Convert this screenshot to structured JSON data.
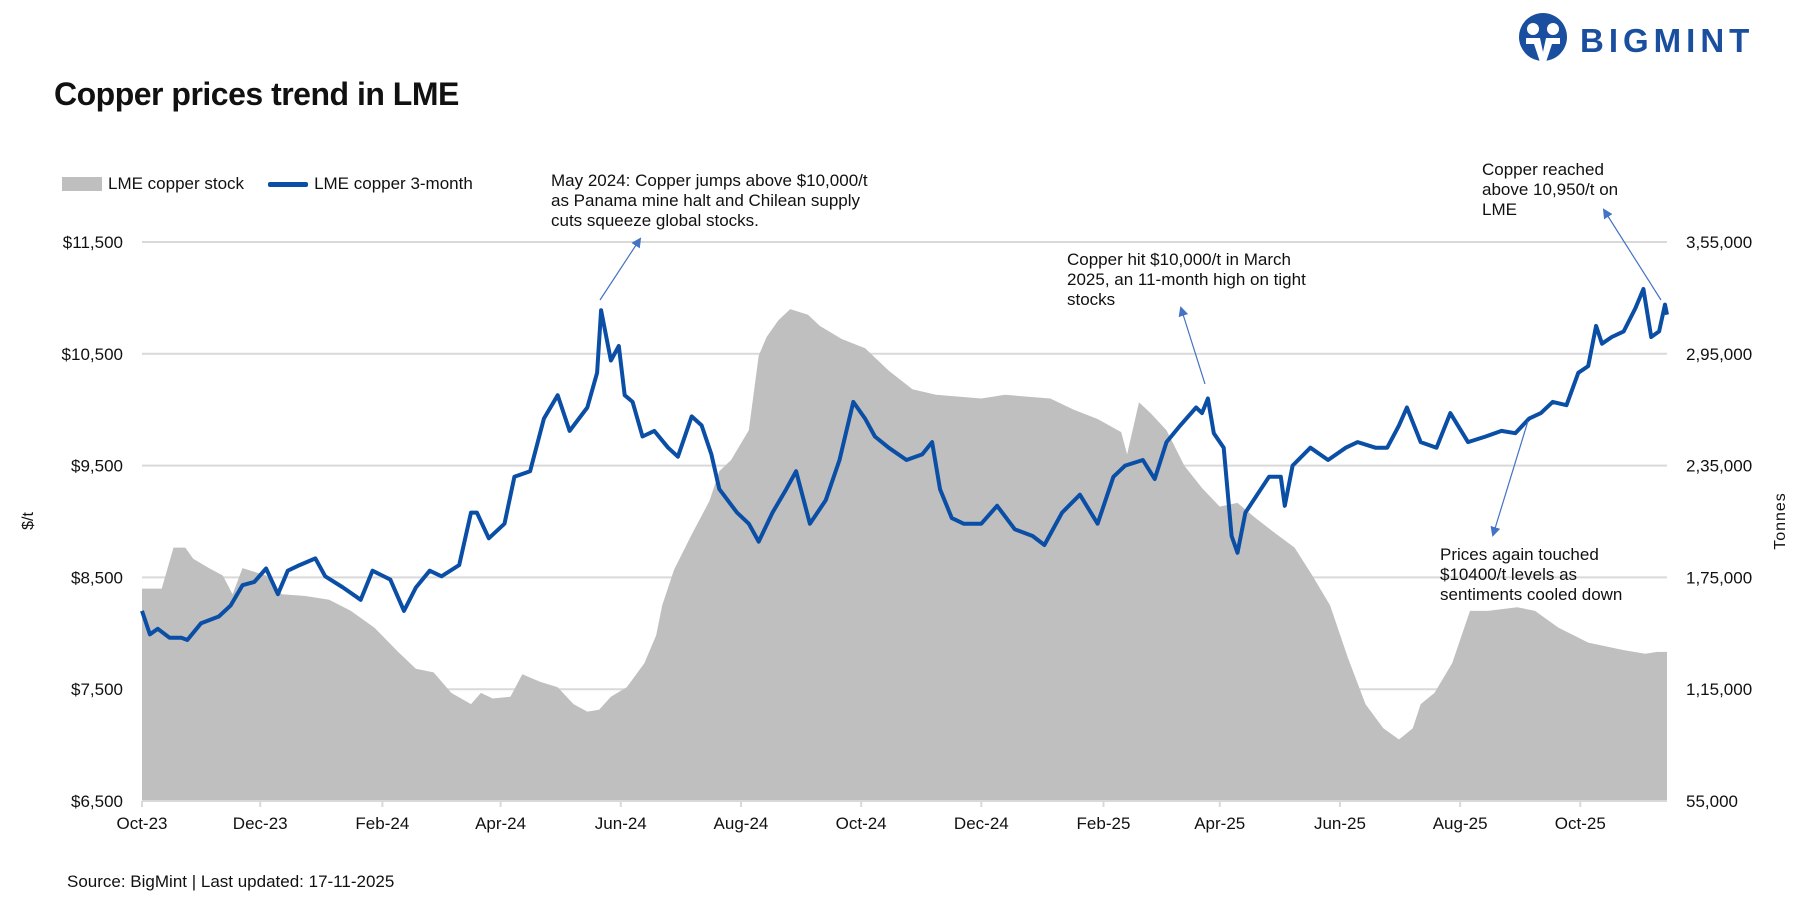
{
  "brand": {
    "logo_text": "BIGMINT",
    "color": "#1a4fa0"
  },
  "source": "Source: BigMint | Last updated: 17-11-2025",
  "chart_data": {
    "type": "line+area",
    "title": "Copper prices trend in LME",
    "legend_position": "top-left",
    "grid": true,
    "x_range": [
      "2023-10-02",
      "2025-11-14"
    ],
    "x_ticks": [
      "Oct-23",
      "Dec-23",
      "Feb-24",
      "Apr-24",
      "Jun-24",
      "Aug-24",
      "Oct-24",
      "Dec-24",
      "Feb-25",
      "Apr-25",
      "Jun-25",
      "Aug-25",
      "Oct-25"
    ],
    "x_tick_dates": [
      "2023-10-02",
      "2023-12-01",
      "2024-02-01",
      "2024-04-01",
      "2024-06-01",
      "2024-08-01",
      "2024-10-01",
      "2024-12-01",
      "2025-02-01",
      "2025-04-01",
      "2025-06-01",
      "2025-08-01",
      "2025-10-01"
    ],
    "y_left": {
      "label": "$/t",
      "range": [
        6500,
        11500
      ],
      "ticks": [
        "$6,500",
        "$7,500",
        "$8,500",
        "$9,500",
        "$10,500",
        "$11,500"
      ],
      "tick_values": [
        6500,
        7500,
        8500,
        9500,
        10500,
        11500
      ]
    },
    "y_right": {
      "label": "Tonnes",
      "range": [
        55000,
        355000
      ],
      "ticks": [
        "55,000",
        "1,15,000",
        "1,75,000",
        "2,35,000",
        "2,95,000",
        "3,55,000"
      ]
    },
    "series": [
      {
        "name": "LME copper stock",
        "type": "area",
        "axis": "right",
        "color": "#bfbfbf",
        "points": [
          [
            "2023-10-02",
            169000
          ],
          [
            "2023-10-12",
            169000
          ],
          [
            "2023-10-18",
            191000
          ],
          [
            "2023-10-24",
            191000
          ],
          [
            "2023-10-28",
            185000
          ],
          [
            "2023-11-05",
            180000
          ],
          [
            "2023-11-12",
            176000
          ],
          [
            "2023-11-17",
            166000
          ],
          [
            "2023-11-22",
            180000
          ],
          [
            "2023-12-04",
            176000
          ],
          [
            "2023-12-12",
            166000
          ],
          [
            "2023-12-24",
            165000
          ],
          [
            "2024-01-05",
            163000
          ],
          [
            "2024-01-16",
            157000
          ],
          [
            "2024-01-28",
            148000
          ],
          [
            "2024-02-09",
            135000
          ],
          [
            "2024-02-18",
            126000
          ],
          [
            "2024-02-27",
            124000
          ],
          [
            "2024-03-07",
            113000
          ],
          [
            "2024-03-17",
            107000
          ],
          [
            "2024-03-22",
            113000
          ],
          [
            "2024-03-28",
            110000
          ],
          [
            "2024-04-06",
            111000
          ],
          [
            "2024-04-12",
            123000
          ],
          [
            "2024-04-21",
            119000
          ],
          [
            "2024-04-30",
            116000
          ],
          [
            "2024-05-08",
            107000
          ],
          [
            "2024-05-15",
            103000
          ],
          [
            "2024-05-21",
            104000
          ],
          [
            "2024-05-27",
            111000
          ],
          [
            "2024-06-04",
            116000
          ],
          [
            "2024-06-13",
            129000
          ],
          [
            "2024-06-19",
            144000
          ],
          [
            "2024-06-22",
            160000
          ],
          [
            "2024-06-28",
            179000
          ],
          [
            "2024-07-07",
            198000
          ],
          [
            "2024-07-16",
            216000
          ],
          [
            "2024-07-21",
            232000
          ],
          [
            "2024-07-27",
            238000
          ],
          [
            "2024-08-05",
            254000
          ],
          [
            "2024-08-10",
            294000
          ],
          [
            "2024-08-14",
            304000
          ],
          [
            "2024-08-20",
            313000
          ],
          [
            "2024-08-26",
            319000
          ],
          [
            "2024-09-04",
            316000
          ],
          [
            "2024-09-10",
            310000
          ],
          [
            "2024-09-21",
            303000
          ],
          [
            "2024-10-03",
            298000
          ],
          [
            "2024-10-15",
            286000
          ],
          [
            "2024-10-27",
            276000
          ],
          [
            "2024-11-08",
            273000
          ],
          [
            "2024-12-01",
            271000
          ],
          [
            "2024-12-13",
            273000
          ],
          [
            "2025-01-05",
            271000
          ],
          [
            "2025-01-17",
            265000
          ],
          [
            "2025-01-29",
            260000
          ],
          [
            "2025-02-10",
            253000
          ],
          [
            "2025-02-13",
            241000
          ],
          [
            "2025-02-19",
            269000
          ],
          [
            "2025-02-25",
            263000
          ],
          [
            "2025-03-05",
            254000
          ],
          [
            "2025-03-14",
            235000
          ],
          [
            "2025-03-23",
            223000
          ],
          [
            "2025-04-01",
            213000
          ],
          [
            "2025-04-10",
            215000
          ],
          [
            "2025-04-19",
            207000
          ],
          [
            "2025-04-30",
            198000
          ],
          [
            "2025-05-09",
            191000
          ],
          [
            "2025-05-18",
            176000
          ],
          [
            "2025-05-27",
            160000
          ],
          [
            "2025-06-05",
            132000
          ],
          [
            "2025-06-14",
            107000
          ],
          [
            "2025-06-23",
            94000
          ],
          [
            "2025-07-01",
            88000
          ],
          [
            "2025-07-08",
            94000
          ],
          [
            "2025-07-12",
            107000
          ],
          [
            "2025-07-19",
            113000
          ],
          [
            "2025-07-28",
            129000
          ],
          [
            "2025-08-06",
            157000
          ],
          [
            "2025-08-15",
            157000
          ],
          [
            "2025-08-30",
            159000
          ],
          [
            "2025-09-08",
            157000
          ],
          [
            "2025-09-20",
            148000
          ],
          [
            "2025-10-05",
            140000
          ],
          [
            "2025-10-23",
            136000
          ],
          [
            "2025-11-03",
            134000
          ],
          [
            "2025-11-09",
            135000
          ],
          [
            "2025-11-14",
            135000
          ]
        ]
      },
      {
        "name": "LME copper 3-month",
        "type": "line",
        "axis": "left",
        "color": "#0a4ea6",
        "points": [
          [
            "2023-10-02",
            8200
          ],
          [
            "2023-10-06",
            7990
          ],
          [
            "2023-10-10",
            8040
          ],
          [
            "2023-10-16",
            7960
          ],
          [
            "2023-10-22",
            7960
          ],
          [
            "2023-10-25",
            7940
          ],
          [
            "2023-11-01",
            8090
          ],
          [
            "2023-11-10",
            8150
          ],
          [
            "2023-11-16",
            8250
          ],
          [
            "2023-11-22",
            8430
          ],
          [
            "2023-11-28",
            8460
          ],
          [
            "2023-12-04",
            8580
          ],
          [
            "2023-12-10",
            8350
          ],
          [
            "2023-12-15",
            8560
          ],
          [
            "2023-12-21",
            8610
          ],
          [
            "2023-12-29",
            8670
          ],
          [
            "2024-01-03",
            8510
          ],
          [
            "2024-01-12",
            8410
          ],
          [
            "2024-01-21",
            8300
          ],
          [
            "2024-01-27",
            8560
          ],
          [
            "2024-02-05",
            8480
          ],
          [
            "2024-02-12",
            8200
          ],
          [
            "2024-02-18",
            8410
          ],
          [
            "2024-02-25",
            8560
          ],
          [
            "2024-03-02",
            8510
          ],
          [
            "2024-03-11",
            8610
          ],
          [
            "2024-03-17",
            9080
          ],
          [
            "2024-03-20",
            9080
          ],
          [
            "2024-03-26",
            8850
          ],
          [
            "2024-04-03",
            8980
          ],
          [
            "2024-04-08",
            9400
          ],
          [
            "2024-04-16",
            9450
          ],
          [
            "2024-04-23",
            9920
          ],
          [
            "2024-04-30",
            10130
          ],
          [
            "2024-05-06",
            9810
          ],
          [
            "2024-05-15",
            10020
          ],
          [
            "2024-05-20",
            10330
          ],
          [
            "2024-05-22",
            10890
          ],
          [
            "2024-05-27",
            10440
          ],
          [
            "2024-05-31",
            10570
          ],
          [
            "2024-06-03",
            10130
          ],
          [
            "2024-06-07",
            10070
          ],
          [
            "2024-06-12",
            9760
          ],
          [
            "2024-06-18",
            9810
          ],
          [
            "2024-06-25",
            9660
          ],
          [
            "2024-06-30",
            9580
          ],
          [
            "2024-07-07",
            9940
          ],
          [
            "2024-07-12",
            9860
          ],
          [
            "2024-07-17",
            9600
          ],
          [
            "2024-07-21",
            9290
          ],
          [
            "2024-07-30",
            9080
          ],
          [
            "2024-08-05",
            8980
          ],
          [
            "2024-08-10",
            8820
          ],
          [
            "2024-08-17",
            9080
          ],
          [
            "2024-08-24",
            9290
          ],
          [
            "2024-08-29",
            9450
          ],
          [
            "2024-09-05",
            8980
          ],
          [
            "2024-09-13",
            9190
          ],
          [
            "2024-09-20",
            9550
          ],
          [
            "2024-09-27",
            10070
          ],
          [
            "2024-10-03",
            9920
          ],
          [
            "2024-10-08",
            9760
          ],
          [
            "2024-10-15",
            9660
          ],
          [
            "2024-10-24",
            9550
          ],
          [
            "2024-11-01",
            9600
          ],
          [
            "2024-11-06",
            9710
          ],
          [
            "2024-11-10",
            9290
          ],
          [
            "2024-11-16",
            9030
          ],
          [
            "2024-11-22",
            8980
          ],
          [
            "2024-12-01",
            8980
          ],
          [
            "2024-12-09",
            9140
          ],
          [
            "2024-12-18",
            8930
          ],
          [
            "2024-12-27",
            8870
          ],
          [
            "2025-01-02",
            8790
          ],
          [
            "2025-01-11",
            9080
          ],
          [
            "2025-01-20",
            9240
          ],
          [
            "2025-01-29",
            8980
          ],
          [
            "2025-02-06",
            9400
          ],
          [
            "2025-02-12",
            9500
          ],
          [
            "2025-02-21",
            9550
          ],
          [
            "2025-02-27",
            9380
          ],
          [
            "2025-03-05",
            9710
          ],
          [
            "2025-03-12",
            9860
          ],
          [
            "2025-03-20",
            10020
          ],
          [
            "2025-03-23",
            9970
          ],
          [
            "2025-03-26",
            10100
          ],
          [
            "2025-03-29",
            9790
          ],
          [
            "2025-04-03",
            9660
          ],
          [
            "2025-04-07",
            8870
          ],
          [
            "2025-04-10",
            8720
          ],
          [
            "2025-04-14",
            9080
          ],
          [
            "2025-04-20",
            9240
          ],
          [
            "2025-04-26",
            9400
          ],
          [
            "2025-05-02",
            9400
          ],
          [
            "2025-05-04",
            9140
          ],
          [
            "2025-05-08",
            9500
          ],
          [
            "2025-05-17",
            9660
          ],
          [
            "2025-05-26",
            9550
          ],
          [
            "2025-06-04",
            9660
          ],
          [
            "2025-06-10",
            9710
          ],
          [
            "2025-06-19",
            9660
          ],
          [
            "2025-06-25",
            9660
          ],
          [
            "2025-07-01",
            9860
          ],
          [
            "2025-07-05",
            10020
          ],
          [
            "2025-07-12",
            9710
          ],
          [
            "2025-07-20",
            9660
          ],
          [
            "2025-07-27",
            9970
          ],
          [
            "2025-08-05",
            9710
          ],
          [
            "2025-08-14",
            9760
          ],
          [
            "2025-08-22",
            9810
          ],
          [
            "2025-08-29",
            9790
          ],
          [
            "2025-09-05",
            9920
          ],
          [
            "2025-09-11",
            9970
          ],
          [
            "2025-09-17",
            10070
          ],
          [
            "2025-09-24",
            10040
          ],
          [
            "2025-09-30",
            10330
          ],
          [
            "2025-10-05",
            10390
          ],
          [
            "2025-10-09",
            10750
          ],
          [
            "2025-10-12",
            10590
          ],
          [
            "2025-10-17",
            10650
          ],
          [
            "2025-10-23",
            10700
          ],
          [
            "2025-10-29",
            10910
          ],
          [
            "2025-11-02",
            11080
          ],
          [
            "2025-11-06",
            10650
          ],
          [
            "2025-11-10",
            10700
          ],
          [
            "2025-11-13",
            10940
          ],
          [
            "2025-11-14",
            10850
          ]
        ]
      }
    ],
    "annotations": [
      {
        "lines": [
          "May 2024: Copper jumps above $10,000/t",
          "as Panama mine halt and Chilean supply",
          "cuts squeeze global stocks."
        ],
        "date": "2024-05-22"
      },
      {
        "lines": [
          "Copper hit $10,000/t in March",
          "2025, an 11-month high on tight",
          "stocks"
        ],
        "date": "2025-03-26"
      },
      {
        "lines": [
          "Copper reached",
          "above 10,950/t on",
          "LME"
        ],
        "date": "2025-11-13"
      },
      {
        "lines": [
          "Prices again touched",
          "$10400/t levels as",
          "sentiments cooled down"
        ],
        "date": "2025-09-01"
      }
    ]
  }
}
